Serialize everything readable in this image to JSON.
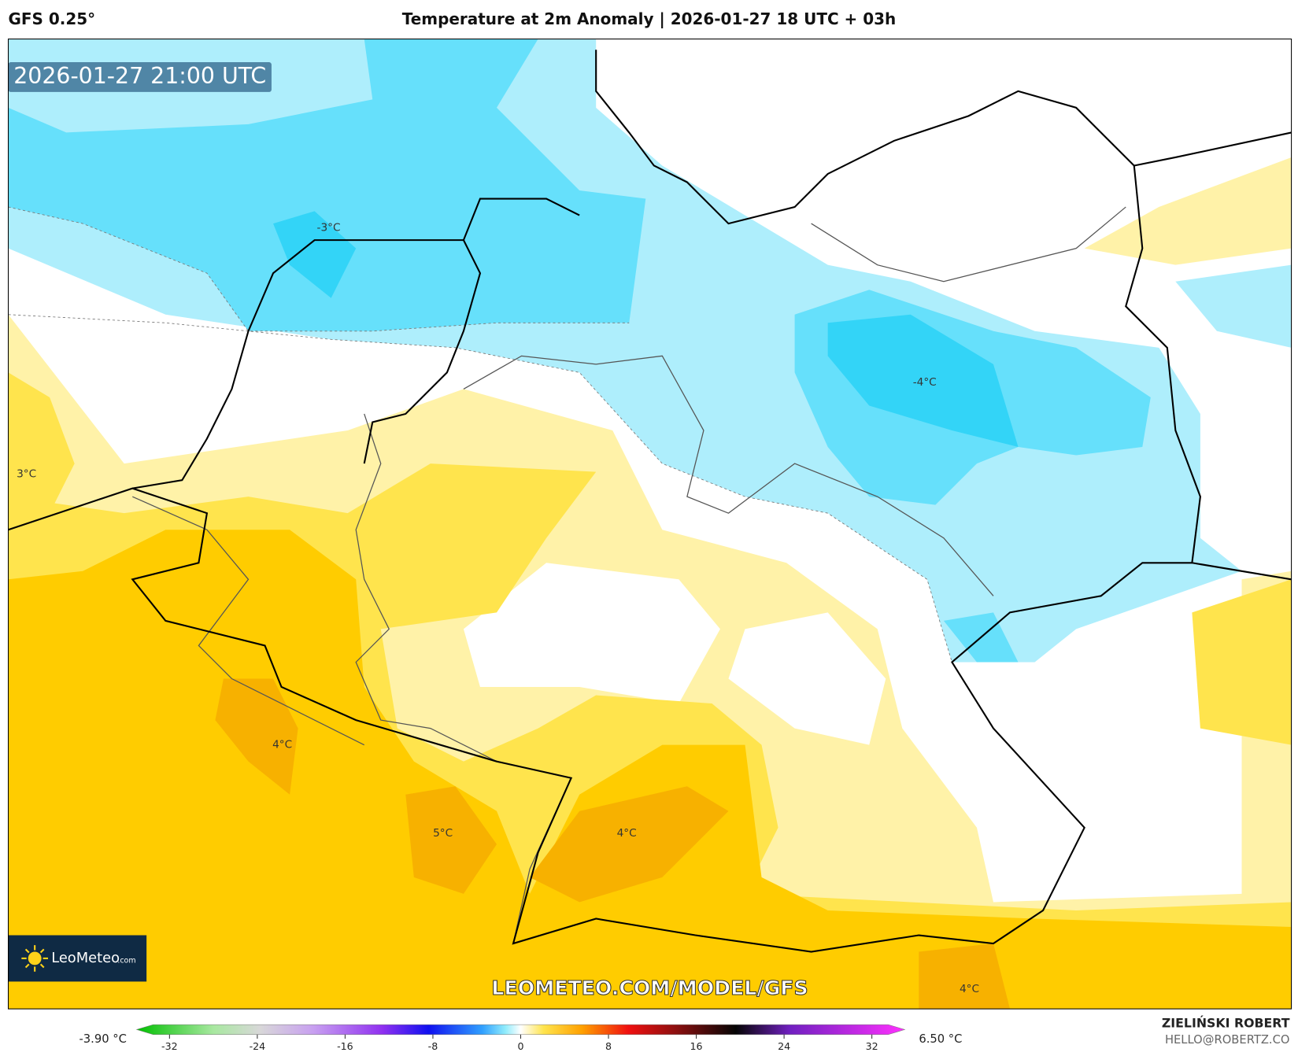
{
  "header": {
    "model": "GFS 0.25°",
    "title": "Temperature at 2m Anomaly | 2026-01-27 18 UTC + 03h"
  },
  "map": {
    "valid_time": "2026-01-27 21:00 UTC",
    "contour_labels": [
      "-3°C",
      "-4°C",
      "3°C",
      "4°C",
      "5°C",
      "4°C",
      "4°C"
    ],
    "watermark": "LEOMETEO.COM/MODEL/GFS",
    "logo": {
      "name": "LeoMeteo",
      "suffix": ".com"
    }
  },
  "colorbar": {
    "min_label": "-3.90 °C",
    "max_label": "6.50 °C",
    "range": [
      -35,
      35
    ],
    "ticks": [
      -32,
      -24,
      -16,
      -8,
      0,
      8,
      16,
      24,
      32
    ]
  },
  "footer": {
    "author": "ZIELIŃSKI ROBERT",
    "email": "HELLO@ROBERTZ.CO"
  }
}
